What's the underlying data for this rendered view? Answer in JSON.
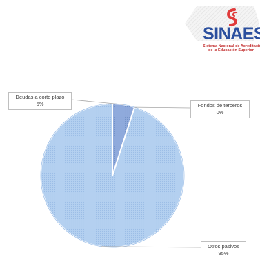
{
  "logo": {
    "word": "SINAES",
    "subtitle_line1": "Sistema Nacional de Acreditación",
    "subtitle_line2": "de la Educación Superior",
    "colors": {
      "blue": "#2b4f9e",
      "red": "#c22c2c",
      "swirl": "#e03b3b"
    }
  },
  "chart_data": {
    "type": "pie",
    "title": "",
    "categories": [
      "Deudas a corto plazo",
      "Fondos de terceros",
      "Otros pasivos"
    ],
    "values": [
      5,
      0,
      95
    ],
    "labels": [
      {
        "name": "Deudas a corto plazo",
        "pct": "5%"
      },
      {
        "name": "Fondos de terceros",
        "pct": "0%"
      },
      {
        "name": "Otros pasivos",
        "pct": "95%"
      }
    ],
    "colors": [
      "#8faadc",
      "#a6a6a6",
      "#b4d0f0"
    ],
    "legend": "none"
  }
}
